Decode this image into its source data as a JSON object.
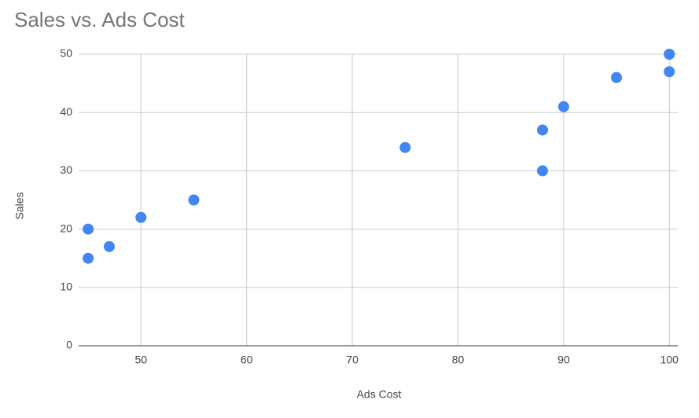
{
  "chart_data": {
    "type": "scatter",
    "title": "Sales vs. Ads Cost",
    "xlabel": "Ads Cost",
    "ylabel": "Sales",
    "x": [
      45,
      45,
      47,
      50,
      55,
      75,
      88,
      88,
      90,
      95,
      100,
      100
    ],
    "values": [
      20,
      15,
      17,
      22,
      25,
      34,
      37,
      30,
      41,
      46,
      50,
      47
    ],
    "color": "#4285f4",
    "xlim": [
      44.1,
      100.8
    ],
    "xticks": [
      50,
      60,
      70,
      80,
      90,
      100
    ],
    "ylim": [
      0,
      50
    ],
    "yticks": [
      0,
      10,
      20,
      30,
      40,
      50
    ],
    "grid": true
  }
}
